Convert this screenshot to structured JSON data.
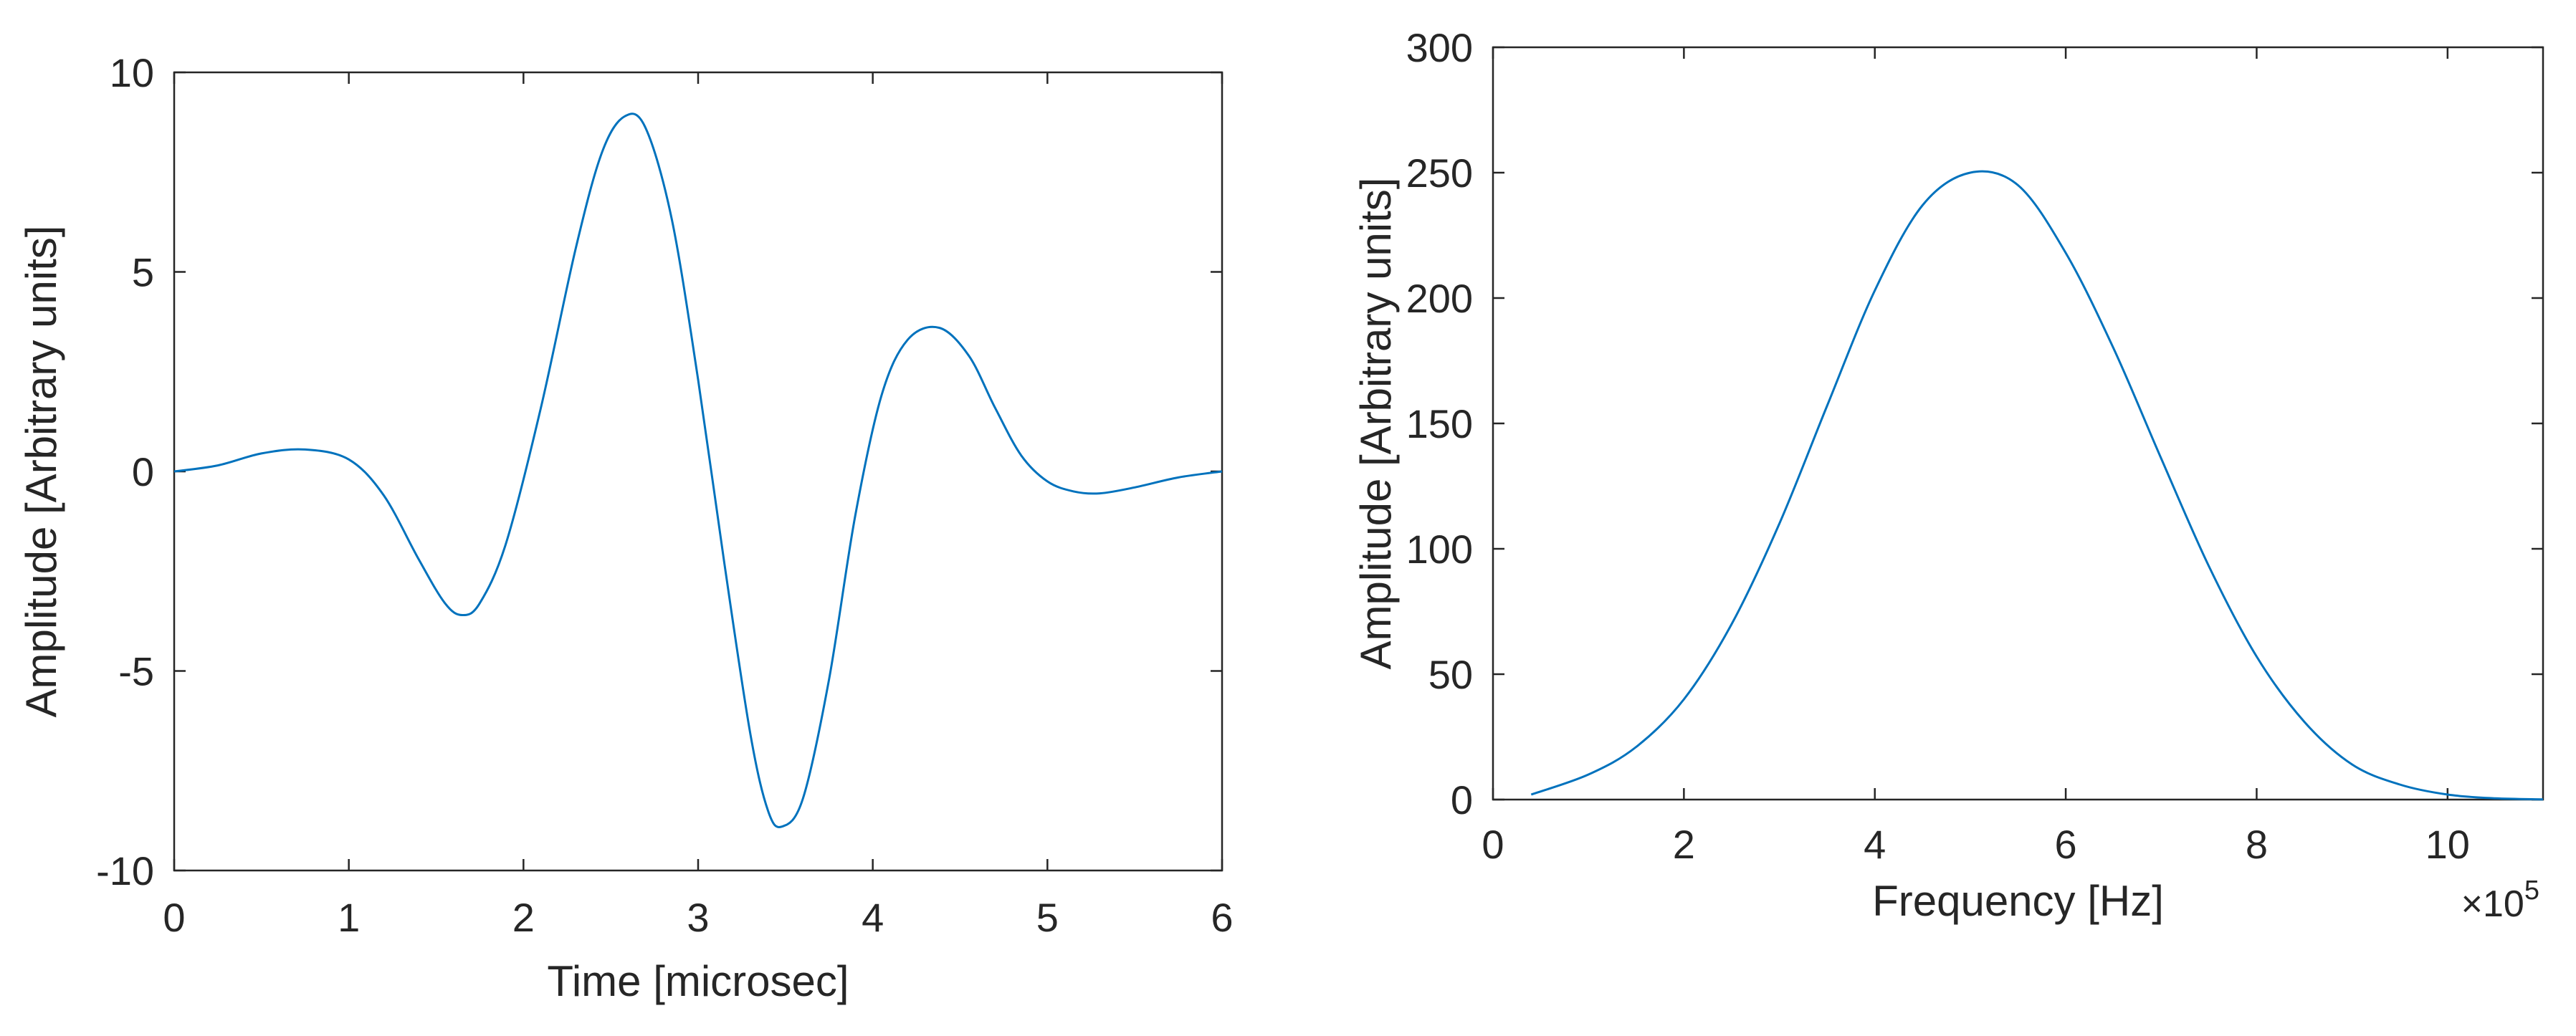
{
  "chart_data": [
    {
      "type": "line",
      "title": "",
      "xlabel": "Time [microsec]",
      "ylabel": "Amplitude [Arbitrary units]",
      "xlim": [
        0,
        6
      ],
      "ylim": [
        -10,
        10
      ],
      "xticks": [
        0,
        1,
        2,
        3,
        4,
        5,
        6
      ],
      "yticks": [
        -10,
        -5,
        0,
        5,
        10
      ],
      "xtick_labels": [
        "0",
        "1",
        "2",
        "3",
        "4",
        "5",
        "6"
      ],
      "ytick_labels": [
        "-10",
        "-5",
        "0",
        "5",
        "10"
      ],
      "grid": false,
      "color": "#0072BD",
      "series": [
        {
          "x": [
            0,
            0.25,
            0.5,
            0.75,
            1.0,
            1.2,
            1.4,
            1.55,
            1.65,
            1.75,
            1.9,
            2.1,
            2.3,
            2.45,
            2.58,
            2.7,
            2.85,
            3.0,
            3.15,
            3.3,
            3.4,
            3.48,
            3.6,
            3.75,
            3.9,
            4.05,
            4.2,
            4.38,
            4.55,
            4.7,
            4.85,
            5.0,
            5.15,
            5.3,
            5.5,
            5.75,
            6.0
          ],
          "y": [
            0,
            0.15,
            0.45,
            0.55,
            0.3,
            -0.6,
            -2.2,
            -3.3,
            -3.6,
            -3.3,
            -1.8,
            1.6,
            5.6,
            8.0,
            8.9,
            8.6,
            6.3,
            2.3,
            -2.3,
            -6.6,
            -8.5,
            -8.9,
            -8.2,
            -5.2,
            -1.1,
            1.9,
            3.3,
            3.6,
            2.9,
            1.6,
            0.4,
            -0.25,
            -0.5,
            -0.55,
            -0.4,
            -0.15,
            0
          ]
        }
      ]
    },
    {
      "type": "line",
      "title": "",
      "xlabel": "Frequency [Hz]",
      "ylabel": "Amplitude [Arbitrary units]",
      "xlim": [
        0,
        1100000
      ],
      "ylim": [
        0,
        300
      ],
      "xticks": [
        0,
        200000,
        400000,
        600000,
        800000,
        1000000
      ],
      "yticks": [
        0,
        50,
        100,
        150,
        200,
        250,
        300
      ],
      "xtick_labels": [
        "0",
        "2",
        "4",
        "6",
        "8",
        "10"
      ],
      "ytick_labels": [
        "0",
        "50",
        "100",
        "150",
        "200",
        "250",
        "300"
      ],
      "x_multiplier_base": "×10",
      "x_multiplier_exponent": "5",
      "grid": false,
      "color": "#0072BD",
      "series": [
        {
          "x": [
            40000,
            100000,
            150000,
            200000,
            250000,
            300000,
            350000,
            400000,
            450000,
            500000,
            550000,
            600000,
            650000,
            700000,
            750000,
            800000,
            850000,
            900000,
            950000,
            1000000,
            1050000,
            1100000
          ],
          "y": [
            2,
            10,
            21,
            40,
            70,
            110,
            157,
            203,
            237,
            250,
            245,
            218,
            180,
            136,
            93,
            57,
            31,
            14,
            6,
            2,
            0.5,
            0.1
          ]
        }
      ]
    }
  ]
}
